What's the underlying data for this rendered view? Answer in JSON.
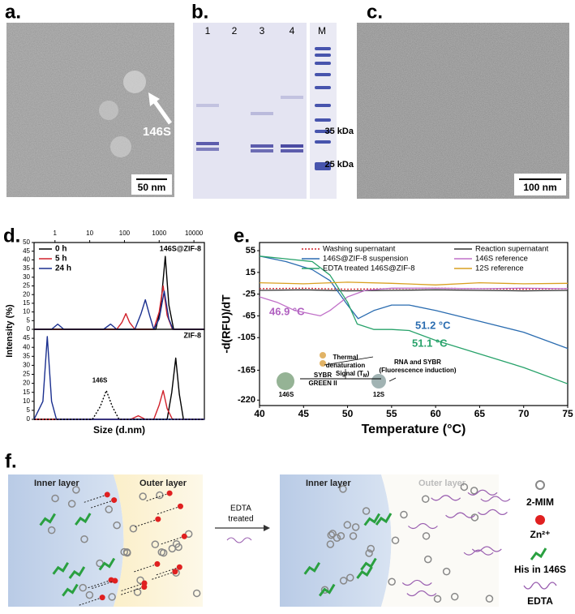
{
  "panels": {
    "a": {
      "label": "a.",
      "annotation": "146S",
      "scale_bar": "50 nm"
    },
    "b": {
      "label": "b.",
      "lanes": [
        "1",
        "2",
        "3",
        "4",
        "M"
      ],
      "markers": [
        "35 kDa",
        "25 kDa"
      ]
    },
    "c": {
      "label": "c.",
      "scale_bar": "100 nm"
    },
    "d": {
      "label": "d."
    },
    "e": {
      "label": "e."
    },
    "f": {
      "label": "f.",
      "left_inner": "Inner layer",
      "left_outer": "Outer layer",
      "arrow_top": "EDTA",
      "arrow_bottom": "treated",
      "right_inner": "Inner layer",
      "right_outer": "Outer layer",
      "legend": [
        "2-MIM",
        "Zn²⁺",
        "His in 146S",
        "EDTA"
      ]
    }
  },
  "chart_data": [
    {
      "type": "line",
      "log_x": true,
      "xaxis_position": "top",
      "ylabel": "Intensity (%)",
      "xlim": [
        0.25,
        20000
      ],
      "xticks": [
        1,
        10,
        100,
        1000,
        10000
      ],
      "ylim": [
        0,
        50
      ],
      "yticks": [
        0,
        5,
        10,
        15,
        20,
        25,
        30,
        35,
        40,
        45,
        50
      ],
      "title": "146S@ZIF-8",
      "legend": "top-left",
      "series": [
        {
          "name": "0 h",
          "color": "#000000",
          "x": [
            0.25,
            800,
            1100,
            1500,
            1900,
            2600,
            20000
          ],
          "values": [
            0,
            0,
            12,
            42,
            14,
            0,
            0
          ]
        },
        {
          "name": "5 h",
          "color": "#d0202a",
          "x": [
            0.25,
            60,
            85,
            110,
            140,
            200,
            700,
            1000,
            1300,
            1700,
            2400,
            20000
          ],
          "values": [
            0,
            0,
            4,
            9,
            4,
            0,
            0,
            10,
            25,
            8,
            0,
            0
          ]
        },
        {
          "name": "24 h",
          "color": "#1a2f8f",
          "x": [
            0.25,
            0.8,
            1.2,
            1.8,
            25,
            40,
            60,
            200,
            300,
            400,
            530,
            700,
            1000,
            1400,
            1900,
            2500,
            20000
          ],
          "values": [
            0,
            0,
            3,
            0,
            0,
            3,
            0,
            0,
            9,
            17,
            8,
            0,
            6,
            22,
            6,
            0,
            0
          ]
        }
      ]
    },
    {
      "type": "line",
      "log_x": true,
      "xlabel": "Size (d.nm)",
      "xlim": [
        0.25,
        20000
      ],
      "ylim": [
        0,
        50
      ],
      "yticks": [
        0,
        5,
        10,
        15,
        20,
        25,
        30,
        35,
        40,
        45
      ],
      "title": "ZIF-8",
      "series": [
        {
          "color": "#000000",
          "x": [
            0.25,
            1700,
            2300,
            3000,
            3800,
            5000,
            20000
          ],
          "values": [
            0,
            0,
            15,
            34,
            14,
            0,
            0
          ]
        },
        {
          "color": "#d0202a",
          "x": [
            0.25,
            150,
            250,
            400,
            700,
            1000,
            1300,
            1700,
            2400,
            20000
          ],
          "values": [
            0,
            0,
            2,
            0,
            0,
            8,
            16,
            6,
            0,
            0
          ]
        },
        {
          "color": "#1a2f8f",
          "x": [
            0.25,
            0.45,
            0.6,
            0.8,
            1.1,
            20000
          ],
          "values": [
            0,
            10,
            46,
            10,
            0,
            0
          ]
        },
        {
          "name": "146S",
          "color": "#000000",
          "dash": "dotted",
          "x": [
            0.25,
            12,
            20,
            30,
            45,
            70,
            20000
          ],
          "values": [
            0,
            0,
            7,
            16,
            7,
            0,
            0
          ]
        }
      ]
    },
    {
      "type": "line",
      "xlabel": "Temperature (°C)",
      "ylabel": "-d(RFU)/dT",
      "xlim": [
        40,
        75
      ],
      "xticks": [
        40,
        45,
        50,
        55,
        60,
        65,
        70,
        75
      ],
      "ylim": [
        -230,
        70
      ],
      "yticks": [
        55,
        15,
        -25,
        -65,
        -105,
        -165,
        -220
      ],
      "series": [
        {
          "name": "Washing supernatant",
          "color": "#d0202a",
          "dash": "dotted",
          "x": [
            40,
            45,
            50,
            55,
            60,
            65,
            70,
            75
          ],
          "values": [
            -15,
            -14,
            -16,
            -15,
            -14,
            -15,
            -16,
            -15
          ]
        },
        {
          "name": "Reaction supernatant",
          "color": "#333333",
          "x": [
            40,
            45,
            50,
            55,
            60,
            65,
            70,
            75
          ],
          "values": [
            -18,
            -17,
            -19,
            -18,
            -17,
            -18,
            -19,
            -18
          ]
        },
        {
          "name": "146S@ZIF-8 suspension",
          "color": "#2a6cb0",
          "x": [
            40,
            43,
            46,
            48,
            50,
            51.2,
            53,
            55,
            57,
            60,
            65,
            70,
            75
          ],
          "values": [
            45,
            35,
            20,
            0,
            -45,
            -70,
            -55,
            -45,
            -45,
            -55,
            -75,
            -95,
            -125
          ]
        },
        {
          "name": "146S reference",
          "color": "#c070c8",
          "x": [
            40,
            42,
            44,
            46.9,
            48,
            50,
            52,
            55,
            60,
            65,
            70,
            75
          ],
          "values": [
            -30,
            -40,
            -55,
            -65,
            -55,
            -30,
            -18,
            -14,
            -14,
            -15,
            -14,
            -15
          ]
        },
        {
          "name": "EDTA treated 146S@ZIF-8",
          "color": "#27a26a",
          "x": [
            40,
            43,
            46,
            48,
            50,
            51.1,
            53,
            55,
            57,
            60,
            65,
            70,
            75
          ],
          "values": [
            45,
            40,
            35,
            10,
            -40,
            -80,
            -90,
            -90,
            -92,
            -110,
            -135,
            -160,
            -190
          ]
        },
        {
          "name": "12S reference",
          "color": "#d9a020",
          "x": [
            40,
            45,
            50,
            55,
            60,
            65,
            70,
            75
          ],
          "values": [
            -4,
            -6,
            -3,
            -5,
            -8,
            -4,
            -6,
            -5
          ]
        }
      ],
      "annotations": [
        "46.9 °C",
        "51.2 °C",
        "51.1 °C",
        "146S",
        "SYBR",
        "GREEN II",
        "Thermal",
        "denaturation",
        "Signal (T",
        "M",
        ")",
        "RNA and SYBR",
        "(Fluorescence induction)",
        "12S"
      ]
    }
  ]
}
